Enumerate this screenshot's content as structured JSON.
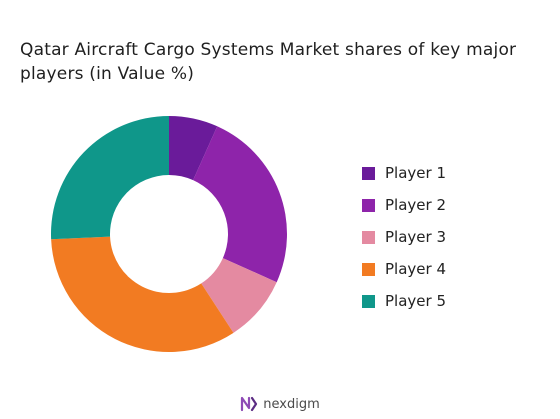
{
  "chart_data": {
    "type": "pie",
    "variant": "donut",
    "title": "Qatar Aircraft Cargo Systems Market shares of key major players (in Value %)",
    "categories": [
      "Player 1",
      "Player 2",
      "Player 3",
      "Player 4",
      "Player 5"
    ],
    "values": [
      6.7,
      25,
      9.1,
      33.5,
      25.7
    ],
    "colors": [
      "#6a1b9a",
      "#8e24aa",
      "#e48aa1",
      "#f27b22",
      "#0f978a"
    ],
    "legend_position": "right"
  },
  "branding": {
    "logo_text": "nexdigm",
    "logo_color": "#8e4bb5"
  }
}
